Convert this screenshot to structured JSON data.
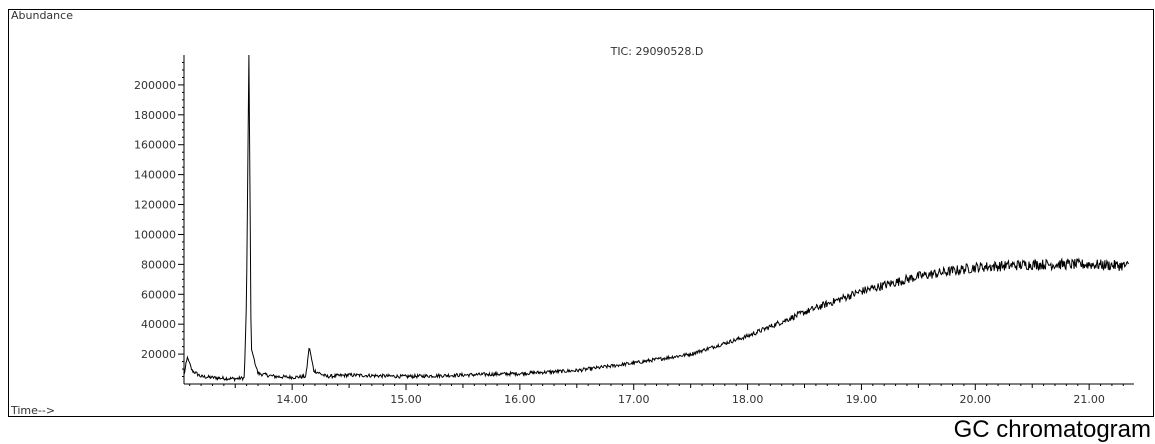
{
  "caption": "GC chromatogram",
  "chart_data": {
    "type": "line",
    "title": "TIC: 29090528.D",
    "ylabel": "Abundance",
    "xlabel": "Time-->",
    "xlim": [
      13.05,
      21.35
    ],
    "ylim": [
      0,
      220000
    ],
    "x_ticks": [
      "14.00",
      "15.00",
      "16.00",
      "17.00",
      "18.00",
      "19.00",
      "20.00",
      "21.00"
    ],
    "y_ticks": [
      "20000",
      "40000",
      "60000",
      "80000",
      "100000",
      "120000",
      "140000",
      "160000",
      "180000",
      "200000"
    ],
    "series": [
      {
        "color": "#000000",
        "points": [
          [
            13.05,
            6000
          ],
          [
            13.08,
            18000
          ],
          [
            13.12,
            9000
          ],
          [
            13.2,
            5000
          ],
          [
            13.35,
            4000
          ],
          [
            13.5,
            3500
          ],
          [
            13.58,
            4000
          ],
          [
            13.6,
            60000
          ],
          [
            13.62,
            220000
          ],
          [
            13.64,
            24000
          ],
          [
            13.7,
            7000
          ],
          [
            13.85,
            5000
          ],
          [
            14.0,
            4500
          ],
          [
            14.12,
            5000
          ],
          [
            14.15,
            25000
          ],
          [
            14.19,
            9000
          ],
          [
            14.3,
            5000
          ],
          [
            14.5,
            6000
          ],
          [
            15.0,
            5000
          ],
          [
            15.5,
            6000
          ],
          [
            16.0,
            7000
          ],
          [
            16.5,
            9000
          ],
          [
            17.0,
            14000
          ],
          [
            17.5,
            20000
          ],
          [
            18.0,
            32000
          ],
          [
            18.5,
            48000
          ],
          [
            19.0,
            62000
          ],
          [
            19.5,
            72000
          ],
          [
            20.0,
            78000
          ],
          [
            20.5,
            80000
          ],
          [
            21.0,
            80000
          ],
          [
            21.35,
            79000
          ]
        ]
      }
    ]
  }
}
